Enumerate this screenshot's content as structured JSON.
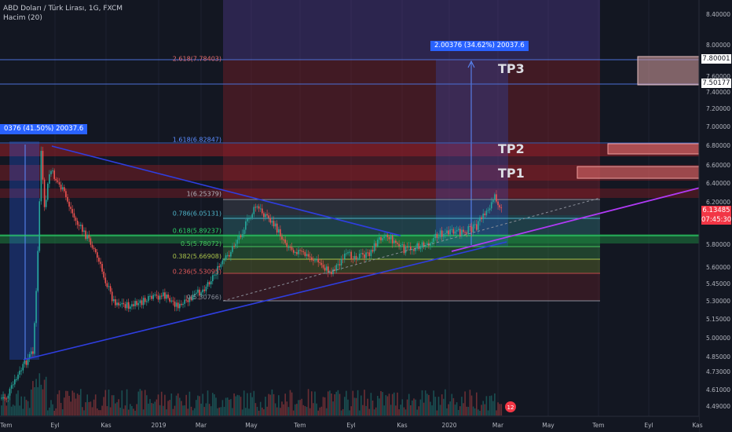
{
  "header": {
    "title": "ABD Doları / Türk Lirası, 1G, FXCM",
    "indicator": "Hacim (20)"
  },
  "measures": {
    "left": "0376 (41.50%) 20037.6",
    "right": "2.00376 (34.62%) 20037.6"
  },
  "targets": [
    "TP3",
    "TP2",
    "TP1"
  ],
  "price_tags": [
    {
      "value": "7.80001",
      "bg": "#ffffff",
      "fg": "#131722"
    },
    {
      "value": "7.50177",
      "bg": "#ffffff",
      "fg": "#131722"
    },
    {
      "value": "6.13485",
      "bg": "#f23645",
      "fg": "#ffffff"
    },
    {
      "value": "07:45:30",
      "bg": "#f23645",
      "fg": "#ffffff"
    }
  ],
  "colors": {
    "up": "#26a69a",
    "down": "#ef5350",
    "trend_line": "#2f3ee0",
    "channel_line": "#b03af5",
    "measure": "#2962ff"
  },
  "chart_data": {
    "type": "candlestick",
    "title": "ABD Doları / Türk Lirası, 1G, FXCM",
    "x_ticks": [
      "Tem",
      "Eyl",
      "Kas",
      "2019",
      "Mar",
      "May",
      "Tem",
      "Eyl",
      "Kas",
      "2020",
      "Mar",
      "May",
      "Tem",
      "Eyl",
      "Kas"
    ],
    "y_ticks": [
      "8.40000",
      "8.00000",
      "7.60000",
      "7.40000",
      "7.20000",
      "7.00000",
      "6.80000",
      "6.60000",
      "6.40000",
      "6.20000",
      "6.00000",
      "5.80000",
      "5.60000",
      "5.45000",
      "5.30000",
      "5.15000",
      "5.00000",
      "4.85000",
      "4.73000",
      "4.61000",
      "4.49000"
    ],
    "y_range": [
      4.45,
      8.5
    ],
    "last_price": 6.13485,
    "fib_levels": [
      {
        "label": "2.618(7.78403)",
        "price": 7.78403
      },
      {
        "label": "1.618(6.82847)",
        "price": 6.82847
      },
      {
        "label": "1(6.25379)",
        "price": 6.25379
      },
      {
        "label": "0.786(6.05131)",
        "price": 6.05131
      },
      {
        "label": "0.618(5.89237)",
        "price": 5.89237
      },
      {
        "label": "0.5(5.78072)",
        "price": 5.78072
      },
      {
        "label": "0.382(5.66908)",
        "price": 5.66908
      },
      {
        "label": "0.236(5.53095)",
        "price": 5.53095
      },
      {
        "label": "0(5.30766)",
        "price": 5.30766
      }
    ],
    "path": [
      {
        "date": "2018-07-01",
        "close": 4.55
      },
      {
        "date": "2018-07-20",
        "close": 4.75
      },
      {
        "date": "2018-08-03",
        "close": 4.9
      },
      {
        "date": "2018-08-08",
        "close": 5.5
      },
      {
        "date": "2018-08-13",
        "close": 6.75
      },
      {
        "date": "2018-08-17",
        "close": 6.1
      },
      {
        "date": "2018-08-24",
        "close": 6.55
      },
      {
        "date": "2018-09-10",
        "close": 6.3
      },
      {
        "date": "2018-09-25",
        "close": 6.0
      },
      {
        "date": "2018-10-15",
        "close": 5.8
      },
      {
        "date": "2018-11-10",
        "close": 5.3
      },
      {
        "date": "2018-12-01",
        "close": 5.25
      },
      {
        "date": "2018-12-20",
        "close": 5.3
      },
      {
        "date": "2019-01-10",
        "close": 5.35
      },
      {
        "date": "2019-02-01",
        "close": 5.25
      },
      {
        "date": "2019-03-01",
        "close": 5.4
      },
      {
        "date": "2019-04-01",
        "close": 5.7
      },
      {
        "date": "2019-05-05",
        "close": 6.15
      },
      {
        "date": "2019-05-20",
        "close": 6.05
      },
      {
        "date": "2019-06-15",
        "close": 5.78
      },
      {
        "date": "2019-07-20",
        "close": 5.65
      },
      {
        "date": "2019-08-05",
        "close": 5.55
      },
      {
        "date": "2019-08-25",
        "close": 5.7
      },
      {
        "date": "2019-09-20",
        "close": 5.7
      },
      {
        "date": "2019-10-10",
        "close": 5.9
      },
      {
        "date": "2019-11-05",
        "close": 5.75
      },
      {
        "date": "2019-12-01",
        "close": 5.8
      },
      {
        "date": "2019-12-20",
        "close": 5.9
      },
      {
        "date": "2020-01-10",
        "close": 5.9
      },
      {
        "date": "2020-02-01",
        "close": 5.95
      },
      {
        "date": "2020-02-25",
        "close": 6.25
      },
      {
        "date": "2020-03-05",
        "close": 6.13
      }
    ],
    "targets": [
      {
        "label": "TP3",
        "low": 7.50177,
        "high": 7.80001
      },
      {
        "label": "TP2",
        "low": 6.72,
        "high": 6.82
      },
      {
        "label": "TP1",
        "low": 6.49,
        "high": 6.58
      }
    ]
  }
}
